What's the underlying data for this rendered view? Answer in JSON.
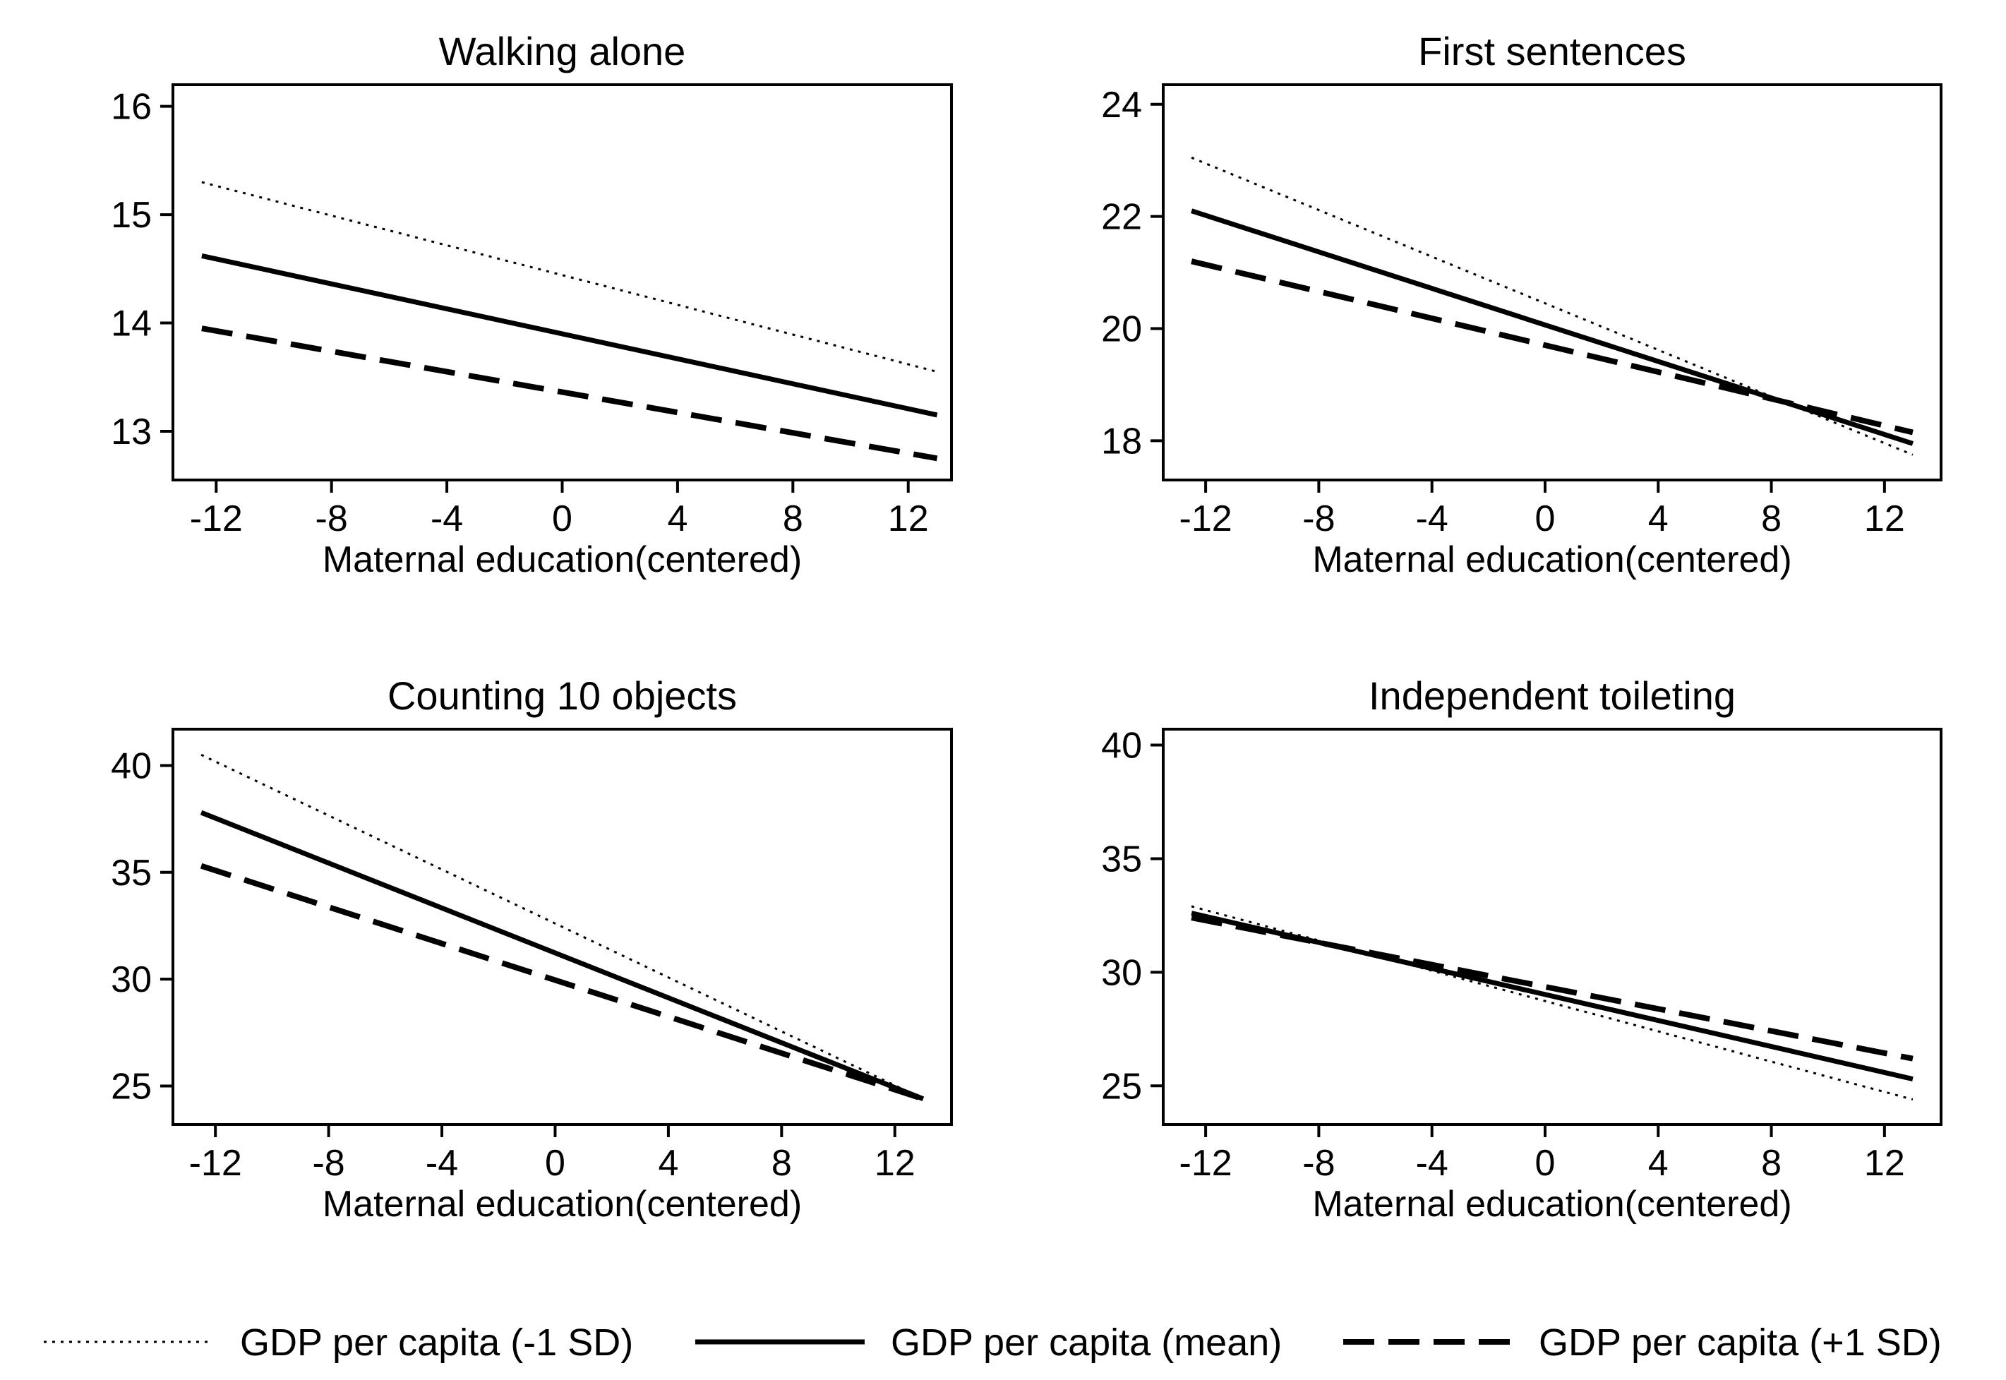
{
  "chart_data": [
    {
      "type": "line",
      "title": "Walking alone",
      "xlabel": "Maternal education(centered)",
      "ylabel": "",
      "xlim": [
        -13.5,
        13.5
      ],
      "ylim": [
        12.55,
        16.2
      ],
      "xticks": [
        -12,
        -8,
        -4,
        0,
        4,
        8,
        12
      ],
      "yticks": [
        13,
        14,
        15,
        16
      ],
      "x": [
        -12.5,
        13
      ],
      "series": [
        {
          "name": "GDP per capita (-1 SD)",
          "values": [
            15.3,
            13.55
          ]
        },
        {
          "name": "GDP per capita (mean)",
          "values": [
            14.62,
            13.15
          ]
        },
        {
          "name": "GDP per capita (+1 SD)",
          "values": [
            13.95,
            12.75
          ]
        }
      ]
    },
    {
      "type": "line",
      "title": "First sentences",
      "xlabel": "Maternal education(centered)",
      "ylabel": "",
      "xlim": [
        -13.5,
        14
      ],
      "ylim": [
        17.3,
        24.35
      ],
      "xticks": [
        -12,
        -8,
        -4,
        0,
        4,
        8,
        12
      ],
      "yticks": [
        18,
        20,
        22,
        24
      ],
      "x": [
        -12.5,
        13
      ],
      "series": [
        {
          "name": "GDP per capita (-1 SD)",
          "values": [
            23.05,
            17.75
          ]
        },
        {
          "name": "GDP per capita (mean)",
          "values": [
            22.1,
            17.95
          ]
        },
        {
          "name": "GDP per capita (+1 SD)",
          "values": [
            21.2,
            18.15
          ]
        }
      ]
    },
    {
      "type": "line",
      "title": "Counting 10 objects",
      "xlabel": "Maternal education(centered)",
      "ylabel": "",
      "xlim": [
        -13.5,
        14
      ],
      "ylim": [
        23.2,
        41.7
      ],
      "xticks": [
        -12,
        -8,
        -4,
        0,
        4,
        8,
        12
      ],
      "yticks": [
        25,
        30,
        35,
        40
      ],
      "x": [
        -12.5,
        13
      ],
      "series": [
        {
          "name": "GDP per capita (-1 SD)",
          "values": [
            40.5,
            24.4
          ]
        },
        {
          "name": "GDP per capita (mean)",
          "values": [
            37.8,
            24.4
          ]
        },
        {
          "name": "GDP per capita (+1 SD)",
          "values": [
            35.3,
            24.4
          ]
        }
      ]
    },
    {
      "type": "line",
      "title": "Independent toileting",
      "xlabel": "Maternal education(centered)",
      "ylabel": "",
      "xlim": [
        -13.5,
        14
      ],
      "ylim": [
        23.3,
        40.7
      ],
      "xticks": [
        -12,
        -8,
        -4,
        0,
        4,
        8,
        12
      ],
      "yticks": [
        25,
        30,
        35,
        40
      ],
      "x": [
        -12.5,
        13
      ],
      "series": [
        {
          "name": "GDP per capita (-1 SD)",
          "values": [
            32.9,
            24.4
          ]
        },
        {
          "name": "GDP per capita (mean)",
          "values": [
            32.6,
            25.3
          ]
        },
        {
          "name": "GDP per capita (+1 SD)",
          "values": [
            32.4,
            26.2
          ]
        }
      ]
    }
  ],
  "legend": {
    "position": "bottom",
    "items": [
      {
        "label": "GDP per capita (-1 SD)",
        "style": "dotted"
      },
      {
        "label": "GDP per capita (mean)",
        "style": "solid"
      },
      {
        "label": "GDP per capita (+1 SD)",
        "style": "dashed"
      }
    ]
  },
  "colors": {
    "line": "#000000",
    "background": "#ffffff"
  }
}
